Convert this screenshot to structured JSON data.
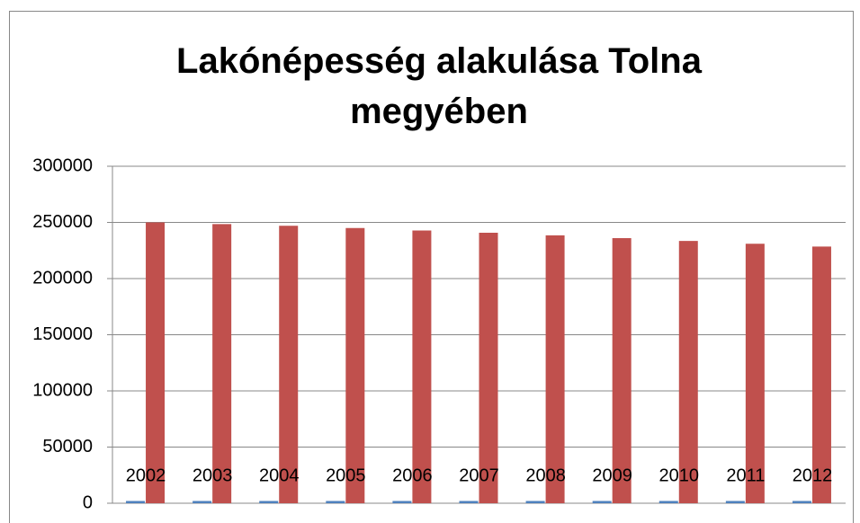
{
  "chart_data": {
    "type": "bar",
    "title": "Lakónépesség alakulása Tolna megyében",
    "categories": [
      "2002",
      "2003",
      "2004",
      "2005",
      "2006",
      "2007",
      "2008",
      "2009",
      "2010",
      "2011",
      "2012"
    ],
    "series": [
      {
        "color": "#4f81bd",
        "values": [
          2002,
          2003,
          2004,
          2005,
          2006,
          2007,
          2008,
          2009,
          2010,
          2011,
          2012
        ]
      },
      {
        "color": "#c0504d",
        "values": [
          250000,
          248500,
          247000,
          245000,
          242800,
          240800,
          238500,
          236000,
          233500,
          231000,
          228500
        ]
      }
    ],
    "ylim": [
      0,
      300000
    ],
    "yticks": [
      0,
      50000,
      100000,
      150000,
      200000,
      250000,
      300000
    ],
    "grid": true
  }
}
